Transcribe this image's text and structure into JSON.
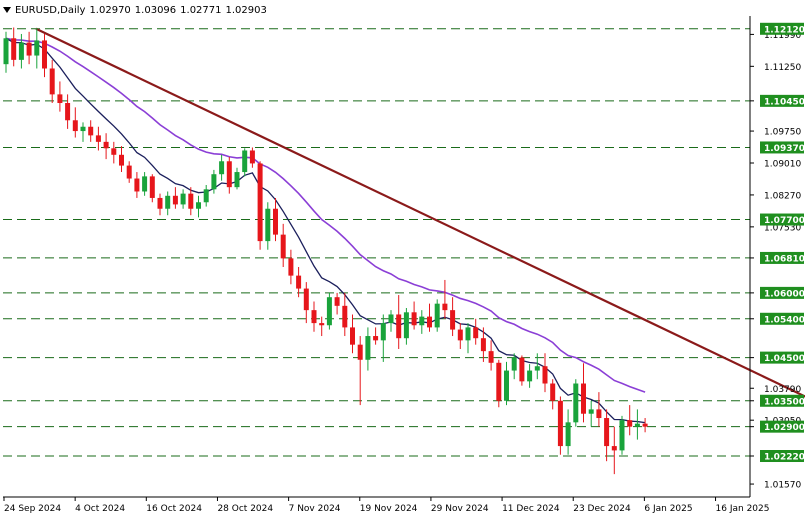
{
  "header": {
    "symbol": "EURUSD,Daily",
    "open": "1.02970",
    "high": "1.03096",
    "low": "1.02771",
    "close": "1.02903"
  },
  "colors": {
    "background": "#ffffff",
    "axis": "#000000",
    "bull_candle": "#19a33b",
    "bear_candle": "#e6161b",
    "level_line": "#1a6b1a",
    "level_label_bg": "#1f8f1f",
    "level_label_text": "#ffffff",
    "ma_fast": "#1b1f5c",
    "ma_slow": "#8b3fd6",
    "trendline": "#8b1a1a"
  },
  "chart_data": {
    "type": "candlestick",
    "title": "EURUSD,Daily",
    "grid": false,
    "ylim": [
      1.0127,
      1.1237
    ],
    "y_ticks": [
      "1.11990",
      "1.11250",
      "1.10450",
      "1.09750",
      "1.09010",
      "1.08270",
      "1.07530",
      "1.06810",
      "1.06000",
      "1.05400",
      "1.04500",
      "1.03790",
      "1.03500",
      "1.03050",
      "1.02900",
      "1.02220",
      "1.01570"
    ],
    "x_ticks": [
      "24 Sep 2024",
      "4 Oct 2024",
      "16 Oct 2024",
      "28 Oct 2024",
      "7 Nov 2024",
      "19 Nov 2024",
      "29 Nov 2024",
      "11 Dec 2024",
      "23 Dec 2024",
      "6 Jan 2025",
      "16 Jan 2025"
    ],
    "levels": [
      1.1212,
      1.1045,
      1.0937,
      1.077,
      1.0681,
      1.06,
      1.054,
      1.045,
      1.035,
      1.029,
      1.0222
    ],
    "level_labels": [
      "1.12120",
      "1.10450",
      "1.09370",
      "1.07700",
      "1.06810",
      "1.06000",
      "1.05400",
      "1.04500",
      "1.03500",
      "1.02900",
      "1.02220"
    ],
    "trendline": [
      [
        0,
        1.1212
      ],
      [
        110,
        1.0318
      ]
    ],
    "candles": [
      [
        1.113,
        1.1205,
        1.111,
        1.119
      ],
      [
        1.119,
        1.1215,
        1.1125,
        1.114
      ],
      [
        1.114,
        1.12,
        1.112,
        1.118
      ],
      [
        1.118,
        1.1205,
        1.113,
        1.115
      ],
      [
        1.115,
        1.1214,
        1.112,
        1.1185
      ],
      [
        1.1185,
        1.12,
        1.11,
        1.112
      ],
      [
        1.112,
        1.114,
        1.104,
        1.106
      ],
      [
        1.106,
        1.109,
        1.102,
        1.104
      ],
      [
        1.104,
        1.106,
        1.098,
        1.1
      ],
      [
        1.1,
        1.103,
        1.096,
        1.0975
      ],
      [
        1.0975,
        1.0995,
        1.095,
        1.0985
      ],
      [
        1.0985,
        1.1,
        1.095,
        1.0965
      ],
      [
        1.0965,
        1.0985,
        1.093,
        1.095
      ],
      [
        1.095,
        1.097,
        1.091,
        1.0935
      ],
      [
        1.0935,
        1.095,
        1.09,
        1.092
      ],
      [
        1.092,
        1.094,
        1.088,
        1.0895
      ],
      [
        1.0895,
        1.0905,
        1.0855,
        1.0865
      ],
      [
        1.0865,
        1.088,
        1.082,
        1.0835
      ],
      [
        1.0835,
        1.088,
        1.0825,
        1.087
      ],
      [
        1.087,
        1.0875,
        1.081,
        1.082
      ],
      [
        1.082,
        1.083,
        1.078,
        1.0795
      ],
      [
        1.0795,
        1.0835,
        1.078,
        1.0825
      ],
      [
        1.0825,
        1.0845,
        1.0795,
        1.0805
      ],
      [
        1.0805,
        1.084,
        1.0795,
        1.083
      ],
      [
        1.083,
        1.0845,
        1.078,
        1.0795
      ],
      [
        1.0795,
        1.0825,
        1.0775,
        1.081
      ],
      [
        1.081,
        1.085,
        1.08,
        1.084
      ],
      [
        1.084,
        1.0885,
        1.083,
        1.0875
      ],
      [
        1.0875,
        1.092,
        1.086,
        1.0905
      ],
      [
        1.0905,
        1.0915,
        1.083,
        1.0845
      ],
      [
        1.0845,
        1.089,
        1.084,
        1.088
      ],
      [
        1.088,
        1.0935,
        1.087,
        1.093
      ],
      [
        1.093,
        1.0937,
        1.089,
        1.09
      ],
      [
        1.09,
        1.0905,
        1.07,
        1.072
      ],
      [
        1.072,
        1.081,
        1.07,
        1.0795
      ],
      [
        1.0795,
        1.082,
        1.072,
        1.0735
      ],
      [
        1.0735,
        1.076,
        1.066,
        1.068
      ],
      [
        1.068,
        1.07,
        1.062,
        1.064
      ],
      [
        1.064,
        1.066,
        1.059,
        1.061
      ],
      [
        1.061,
        1.0625,
        1.053,
        1.056
      ],
      [
        1.056,
        1.058,
        1.051,
        1.053
      ],
      [
        1.053,
        1.0545,
        1.05,
        1.0525
      ],
      [
        1.0525,
        1.06,
        1.0515,
        1.059
      ],
      [
        1.059,
        1.06,
        1.055,
        1.057
      ],
      [
        1.057,
        1.06,
        1.05,
        1.052
      ],
      [
        1.052,
        1.055,
        1.046,
        1.048
      ],
      [
        1.048,
        1.05,
        1.034,
        1.0445
      ],
      [
        1.0445,
        1.052,
        1.042,
        1.05
      ],
      [
        1.05,
        1.052,
        1.048,
        1.049
      ],
      [
        1.049,
        1.055,
        1.044,
        1.053
      ],
      [
        1.053,
        1.056,
        1.051,
        1.055
      ],
      [
        1.055,
        1.0595,
        1.047,
        1.0495
      ],
      [
        1.0495,
        1.0565,
        1.048,
        1.0555
      ],
      [
        1.0555,
        1.058,
        1.0515,
        1.0525
      ],
      [
        1.0525,
        1.056,
        1.0505,
        1.0545
      ],
      [
        1.0545,
        1.0575,
        1.051,
        1.052
      ],
      [
        1.052,
        1.0585,
        1.051,
        1.0575
      ],
      [
        1.0575,
        1.063,
        1.054,
        1.056
      ],
      [
        1.056,
        1.059,
        1.05,
        1.0515
      ],
      [
        1.0515,
        1.053,
        1.047,
        1.049
      ],
      [
        1.049,
        1.053,
        1.046,
        1.052
      ],
      [
        1.052,
        1.054,
        1.048,
        1.0495
      ],
      [
        1.0495,
        1.052,
        1.044,
        1.0465
      ],
      [
        1.0465,
        1.049,
        1.042,
        1.0438
      ],
      [
        1.0438,
        1.0445,
        1.0335,
        1.035
      ],
      [
        1.035,
        1.044,
        1.034,
        1.042
      ],
      [
        1.042,
        1.046,
        1.04,
        1.045
      ],
      [
        1.045,
        1.0455,
        1.0385,
        1.0395
      ],
      [
        1.0395,
        1.0435,
        1.038,
        1.042
      ],
      [
        1.042,
        1.046,
        1.04,
        1.043
      ],
      [
        1.043,
        1.046,
        1.037,
        1.039
      ],
      [
        1.039,
        1.04,
        1.033,
        1.035
      ],
      [
        1.035,
        1.036,
        1.0225,
        1.0245
      ],
      [
        1.0245,
        1.033,
        1.0225,
        1.03
      ],
      [
        1.03,
        1.04,
        1.029,
        1.039
      ],
      [
        1.039,
        1.0437,
        1.03,
        1.032
      ],
      [
        1.032,
        1.035,
        1.029,
        1.033
      ],
      [
        1.033,
        1.037,
        1.029,
        1.031
      ],
      [
        1.031,
        1.033,
        1.021,
        1.0245
      ],
      [
        1.0245,
        1.029,
        1.018,
        1.0235
      ],
      [
        1.0235,
        1.0315,
        1.0225,
        1.0305
      ],
      [
        1.0305,
        1.034,
        1.027,
        1.029
      ],
      [
        1.029,
        1.033,
        1.026,
        1.0297
      ],
      [
        1.0297,
        1.031,
        1.0277,
        1.029
      ]
    ],
    "ma_fast_span": 9,
    "ma_slow_span": 26
  }
}
